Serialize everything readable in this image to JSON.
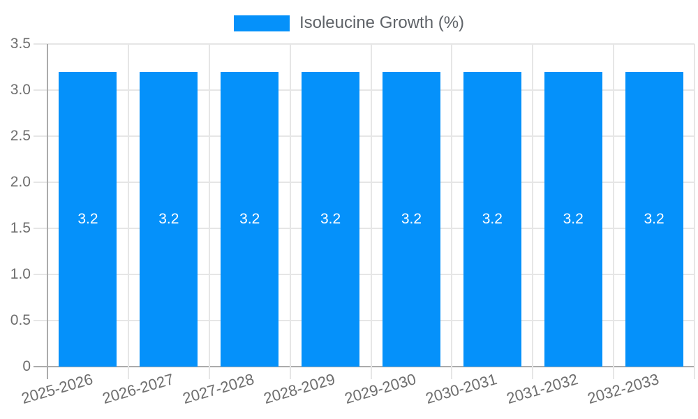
{
  "legend": {
    "label": "Isoleucine Growth (%)"
  },
  "colors": {
    "bar": "#0591fa",
    "grid": "#e6e6e6",
    "axis": "#ababab",
    "tick_label": "#6e6e6e",
    "legend_label": "#5f6368",
    "value_label": "#ffffff",
    "background": "#ffffff"
  },
  "chart_data": {
    "type": "bar",
    "title": "",
    "legend_entries": [
      "Isoleucine Growth (%)"
    ],
    "legend_position": "top",
    "categories": [
      "2025-2026",
      "2026-2027",
      "2027-2028",
      "2028-2029",
      "2029-2030",
      "2030-2031",
      "2031-2032",
      "2032-2033"
    ],
    "series": [
      {
        "name": "Isoleucine Growth (%)",
        "values": [
          3.2,
          3.2,
          3.2,
          3.2,
          3.2,
          3.2,
          3.2,
          3.2
        ]
      }
    ],
    "value_labels": [
      "3.2",
      "3.2",
      "3.2",
      "3.2",
      "3.2",
      "3.2",
      "3.2",
      "3.2"
    ],
    "xlabel": "",
    "ylabel": "",
    "ylim": [
      0,
      3.5
    ],
    "ytick_values": [
      0,
      0.5,
      1.0,
      1.5,
      2.0,
      2.5,
      3.0,
      3.5
    ],
    "yticks": [
      "0",
      "0.5",
      "1.0",
      "1.5",
      "2.0",
      "2.5",
      "3.0",
      "3.5"
    ],
    "grid": true,
    "x_label_rotation_deg": -16
  }
}
